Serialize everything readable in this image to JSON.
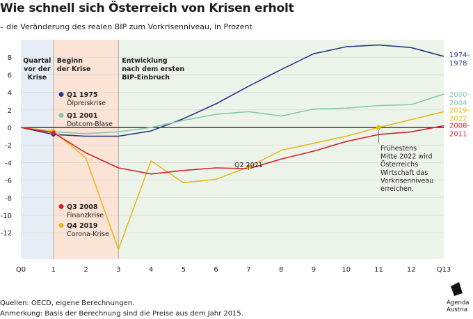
{
  "title": "Wie schnell sich Österreich von Krisen erholt",
  "subtitle": "– die Veränderung des realen BIP zum Vorkrisenniveau, in Prozent",
  "footer": {
    "sources": "Quellen: OECD, eigene Berechnungen.",
    "note": "Anmerkung: Basis der Berechnung sind die Preise aus dem Jahr 2015."
  },
  "logo": {
    "icon": "agenda-austria-logo-icon",
    "line1": "Agenda",
    "line2": "Austria"
  },
  "chart_data": {
    "type": "line",
    "x": [
      0,
      1,
      2,
      3,
      4,
      5,
      6,
      7,
      8,
      9,
      10,
      11,
      12,
      13
    ],
    "xticks": [
      "Q0",
      "1",
      "2",
      "3",
      "4",
      "5",
      "6",
      "7",
      "8",
      "9",
      "10",
      "11",
      "12",
      "Q13"
    ],
    "yticks": [
      8,
      6,
      4,
      2,
      0,
      -2,
      -4,
      -6,
      -8,
      -10,
      -12
    ],
    "ylim": [
      -15,
      10
    ],
    "xlim": [
      0,
      13
    ],
    "grid": true,
    "phases": [
      {
        "from": 0,
        "to": 1,
        "color": "#e7edf4",
        "lines": [
          "Quartal",
          "vor der",
          "Krise"
        ],
        "anchor": "middle"
      },
      {
        "from": 1,
        "to": 3,
        "color": "#fbe3d6",
        "lines": [
          "Beginn",
          "der Krise"
        ],
        "anchor": "start"
      },
      {
        "from": 3,
        "to": 13,
        "color": "#ecf4ea",
        "lines": [
          "Entwicklung",
          "nach dem ersten",
          "BIP-Einbruch"
        ],
        "anchor": "start"
      }
    ],
    "series": [
      {
        "name": "1974-1978",
        "label_lines": [
          "1974-",
          "1978"
        ],
        "color": "#283a85",
        "values": [
          0,
          -0.8,
          -1.0,
          -1.0,
          -0.4,
          1.0,
          2.7,
          4.7,
          6.6,
          8.4,
          9.2,
          9.4,
          9.1,
          8.1
        ]
      },
      {
        "name": "2000-2004",
        "label_lines": [
          "2000-",
          "2004"
        ],
        "color": "#85c9a8",
        "values": [
          0,
          -0.5,
          -0.7,
          -0.5,
          0.0,
          0.8,
          1.5,
          1.8,
          1.3,
          2.1,
          2.2,
          2.5,
          2.6,
          3.8
        ]
      },
      {
        "name": "2019-2022",
        "label_lines": [
          "2019-",
          "2022"
        ],
        "color": "#e7b81d",
        "values": [
          0,
          -0.4,
          -3.5,
          -13.9,
          -3.8,
          -6.3,
          -5.9,
          -4.5,
          -2.6,
          -1.8,
          -1.0,
          0.0,
          0.9,
          1.8
        ]
      },
      {
        "name": "2008-2011",
        "label_lines": [
          "2008-",
          "2011"
        ],
        "color": "#d3212c",
        "values": [
          0,
          -0.6,
          -2.9,
          -4.6,
          -5.3,
          -4.9,
          -4.6,
          -4.7,
          -3.6,
          -2.7,
          -1.6,
          -0.8,
          -0.5,
          0.2
        ]
      }
    ],
    "legend": [
      {
        "label": "Q1 1975",
        "sub": "Ölpreiskrise",
        "color": "#283a85"
      },
      {
        "label": "Q1 2001",
        "sub": "Dotcom-Blase",
        "color": "#85c9a8"
      },
      {
        "label": "Q3 2008",
        "sub": "Finanzkrise",
        "color": "#d3212c"
      },
      {
        "label": "Q4 2019",
        "sub": "Corona-Krise",
        "color": "#e7b81d"
      }
    ],
    "annotations": [
      {
        "x": 7,
        "y": -4.5,
        "label": "Q2 2021",
        "color": "#e7b81d"
      },
      {
        "x": 11,
        "y": 0.0,
        "lines": [
          "Frühestens",
          "Mitte 2022 wird",
          "Österreichs",
          "Wirtschaft das",
          "Vorkrisenniveau",
          "erreichen."
        ],
        "color": "#e7b81d"
      }
    ]
  }
}
